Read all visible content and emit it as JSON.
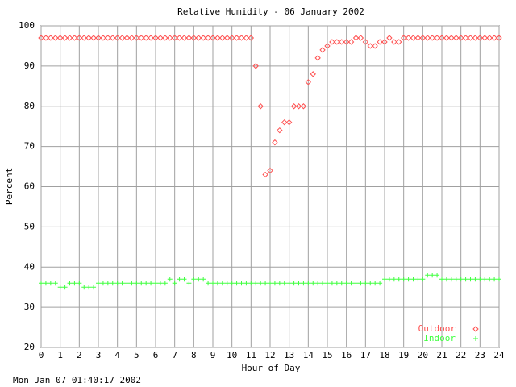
{
  "chart_data": {
    "type": "scatter",
    "title": "Relative Humidity - 06 January 2002",
    "xlabel": "Hour of Day",
    "ylabel": "Percent",
    "footer": "Mon Jan 07 01:40:17 2002",
    "xlim": [
      0,
      24
    ],
    "ylim": [
      20,
      100
    ],
    "xticks": [
      0,
      1,
      2,
      3,
      4,
      5,
      6,
      7,
      8,
      9,
      10,
      11,
      12,
      13,
      14,
      15,
      16,
      17,
      18,
      19,
      20,
      21,
      22,
      23,
      24
    ],
    "yticks": [
      20,
      30,
      40,
      50,
      60,
      70,
      80,
      90,
      100
    ],
    "grid": true,
    "legend": "lower-right",
    "x": [
      0,
      0.25,
      0.5,
      0.75,
      1,
      1.25,
      1.5,
      1.75,
      2,
      2.25,
      2.5,
      2.75,
      3,
      3.25,
      3.5,
      3.75,
      4,
      4.25,
      4.5,
      4.75,
      5,
      5.25,
      5.5,
      5.75,
      6,
      6.25,
      6.5,
      6.75,
      7,
      7.25,
      7.5,
      7.75,
      8,
      8.25,
      8.5,
      8.75,
      9,
      9.25,
      9.5,
      9.75,
      10,
      10.25,
      10.5,
      10.75,
      11,
      11.25,
      11.5,
      11.75,
      12,
      12.25,
      12.5,
      12.75,
      13,
      13.25,
      13.5,
      13.75,
      14,
      14.25,
      14.5,
      14.75,
      15,
      15.25,
      15.5,
      15.75,
      16,
      16.25,
      16.5,
      16.75,
      17,
      17.25,
      17.5,
      17.75,
      18,
      18.25,
      18.5,
      18.75,
      19,
      19.25,
      19.5,
      19.75,
      20,
      20.25,
      20.5,
      20.75,
      21,
      21.25,
      21.5,
      21.75,
      22,
      22.25,
      22.5,
      22.75,
      23,
      23.25,
      23.5,
      23.75,
      24
    ],
    "series": [
      {
        "name": "Outdoor",
        "color": "#ff5050",
        "marker": "diamond",
        "values": [
          97,
          97,
          97,
          97,
          97,
          97,
          97,
          97,
          97,
          97,
          97,
          97,
          97,
          97,
          97,
          97,
          97,
          97,
          97,
          97,
          97,
          97,
          97,
          97,
          97,
          97,
          97,
          97,
          97,
          97,
          97,
          97,
          97,
          97,
          97,
          97,
          97,
          97,
          97,
          97,
          97,
          97,
          97,
          97,
          97,
          90,
          80,
          63,
          64,
          71,
          74,
          76,
          76,
          80,
          80,
          80,
          86,
          88,
          92,
          94,
          95,
          96,
          96,
          96,
          96,
          96,
          97,
          97,
          96,
          95,
          95,
          96,
          96,
          97,
          96,
          96,
          97,
          97,
          97,
          97,
          97,
          97,
          97,
          97,
          97,
          97,
          97,
          97,
          97,
          97,
          97,
          97,
          97,
          97,
          97,
          97,
          97
        ]
      },
      {
        "name": "Indoor",
        "color": "#40ff40",
        "marker": "plus",
        "values": [
          36,
          36,
          36,
          36,
          35,
          35,
          36,
          36,
          36,
          35,
          35,
          35,
          36,
          36,
          36,
          36,
          36,
          36,
          36,
          36,
          36,
          36,
          36,
          36,
          36,
          36,
          36,
          37,
          36,
          37,
          37,
          36,
          37,
          37,
          37,
          36,
          36,
          36,
          36,
          36,
          36,
          36,
          36,
          36,
          36,
          36,
          36,
          36,
          36,
          36,
          36,
          36,
          36,
          36,
          36,
          36,
          36,
          36,
          36,
          36,
          36,
          36,
          36,
          36,
          36,
          36,
          36,
          36,
          36,
          36,
          36,
          36,
          37,
          37,
          37,
          37,
          37,
          37,
          37,
          37,
          37,
          38,
          38,
          38,
          37,
          37,
          37,
          37,
          37,
          37,
          37,
          37,
          37,
          37,
          37,
          37,
          37
        ]
      }
    ]
  }
}
